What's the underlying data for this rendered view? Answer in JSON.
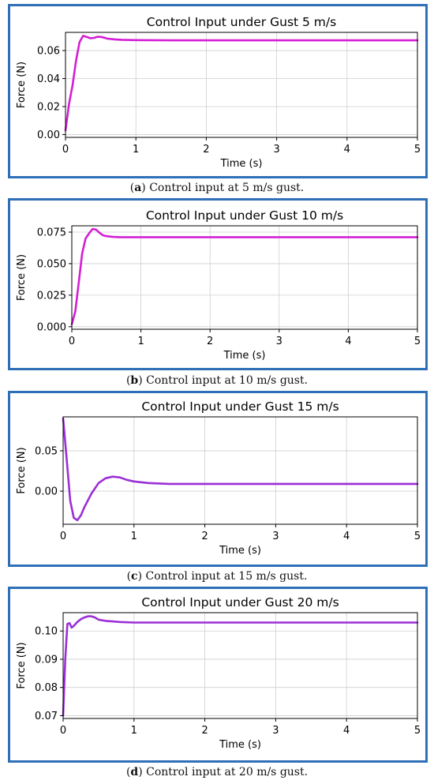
{
  "figures": [
    {
      "caption_letter": "a",
      "caption_text": " Control input at 5 m/s gust.",
      "chart_data": {
        "type": "line",
        "title": "Control Input under Gust 5 m/s",
        "xlabel": "Time (s)",
        "ylabel": "Force (N)",
        "xlim": [
          0,
          5
        ],
        "ylim": [
          -0.002,
          0.073
        ],
        "xticks": [
          0,
          1,
          2,
          3,
          4,
          5
        ],
        "xtick_labels": [
          "0",
          "1",
          "2",
          "3",
          "4",
          "5"
        ],
        "yticks": [
          0,
          0.02,
          0.04,
          0.06
        ],
        "ytick_labels": [
          "0.00",
          "0.02",
          "0.04",
          "0.06"
        ],
        "grid": true,
        "color": "#d41ed4",
        "x": [
          0,
          0.05,
          0.1,
          0.15,
          0.2,
          0.25,
          0.3,
          0.35,
          0.4,
          0.45,
          0.5,
          0.55,
          0.6,
          0.7,
          0.8,
          1.0,
          1.5,
          2,
          3,
          4,
          5
        ],
        "y": [
          0.003,
          0.022,
          0.035,
          0.053,
          0.066,
          0.0705,
          0.0698,
          0.0688,
          0.069,
          0.0698,
          0.0698,
          0.0692,
          0.0685,
          0.068,
          0.0677,
          0.0675,
          0.0673,
          0.0673,
          0.0673,
          0.0673,
          0.0673
        ]
      }
    },
    {
      "caption_letter": "b",
      "caption_text": " Control input at 10 m/s gust.",
      "chart_data": {
        "type": "line",
        "title": "Control Input under Gust 10 m/s",
        "xlabel": "Time (s)",
        "ylabel": "Force (N)",
        "xlim": [
          0,
          5
        ],
        "ylim": [
          -0.002,
          0.08
        ],
        "xticks": [
          0,
          1,
          2,
          3,
          4,
          5
        ],
        "xtick_labels": [
          "0",
          "1",
          "2",
          "3",
          "4",
          "5"
        ],
        "yticks": [
          0,
          0.025,
          0.05,
          0.075
        ],
        "ytick_labels": [
          "0.000",
          "0.025",
          "0.050",
          "0.075"
        ],
        "grid": true,
        "color": "#d41ed4",
        "x": [
          0,
          0.05,
          0.1,
          0.15,
          0.2,
          0.25,
          0.3,
          0.35,
          0.4,
          0.45,
          0.5,
          0.6,
          0.7,
          0.8,
          1.0,
          1.5,
          2,
          3,
          4,
          5
        ],
        "y": [
          0.002,
          0.012,
          0.035,
          0.058,
          0.07,
          0.074,
          0.0775,
          0.077,
          0.0745,
          0.0725,
          0.0718,
          0.0712,
          0.071,
          0.071,
          0.071,
          0.071,
          0.071,
          0.071,
          0.071,
          0.071
        ]
      }
    },
    {
      "caption_letter": "c",
      "caption_text": " Control input at 15 m/s gust.",
      "chart_data": {
        "type": "line",
        "title": "Control Input under Gust 15 m/s",
        "xlabel": "Time (s)",
        "ylabel": "Force (N)",
        "xlim": [
          0,
          5
        ],
        "ylim": [
          -0.041,
          0.092
        ],
        "xticks": [
          0,
          1,
          2,
          3,
          4,
          5
        ],
        "xtick_labels": [
          "0",
          "1",
          "2",
          "3",
          "4",
          "5"
        ],
        "yticks": [
          0,
          0.05
        ],
        "ytick_labels": [
          "0.00",
          "0.05"
        ],
        "grid": true,
        "color": "#9b2fd6",
        "x": [
          0,
          0.05,
          0.1,
          0.15,
          0.2,
          0.25,
          0.3,
          0.4,
          0.5,
          0.6,
          0.7,
          0.8,
          0.9,
          1.0,
          1.2,
          1.5,
          2,
          3,
          4,
          5
        ],
        "y": [
          0.09,
          0.04,
          -0.012,
          -0.033,
          -0.036,
          -0.03,
          -0.02,
          -0.003,
          0.01,
          0.016,
          0.018,
          0.017,
          0.014,
          0.012,
          0.01,
          0.009,
          0.009,
          0.009,
          0.009,
          0.009
        ]
      }
    },
    {
      "caption_letter": "d",
      "caption_text": " Control input at 20 m/s gust.",
      "chart_data": {
        "type": "line",
        "title": "Control Input under Gust 20 m/s",
        "xlabel": "Time (s)",
        "ylabel": "Force (N)",
        "xlim": [
          0,
          5
        ],
        "ylim": [
          0.069,
          0.1065
        ],
        "xticks": [
          0,
          1,
          2,
          3,
          4,
          5
        ],
        "xtick_labels": [
          "0",
          "1",
          "2",
          "3",
          "4",
          "5"
        ],
        "yticks": [
          0.07,
          0.08,
          0.09,
          0.1
        ],
        "ytick_labels": [
          "0.07",
          "0.08",
          "0.09",
          "0.10"
        ],
        "grid": true,
        "color": "#9b2fd6",
        "x": [
          0,
          0.03,
          0.06,
          0.09,
          0.12,
          0.15,
          0.2,
          0.25,
          0.3,
          0.35,
          0.4,
          0.45,
          0.5,
          0.6,
          0.7,
          0.8,
          1.0,
          1.5,
          2,
          3,
          4,
          5
        ],
        "y": [
          0.07,
          0.09,
          0.1025,
          0.1028,
          0.1012,
          0.1018,
          0.1032,
          0.1042,
          0.1048,
          0.1052,
          0.1052,
          0.1048,
          0.104,
          0.1036,
          0.1034,
          0.1032,
          0.103,
          0.103,
          0.103,
          0.103,
          0.103,
          0.103
        ]
      }
    }
  ]
}
